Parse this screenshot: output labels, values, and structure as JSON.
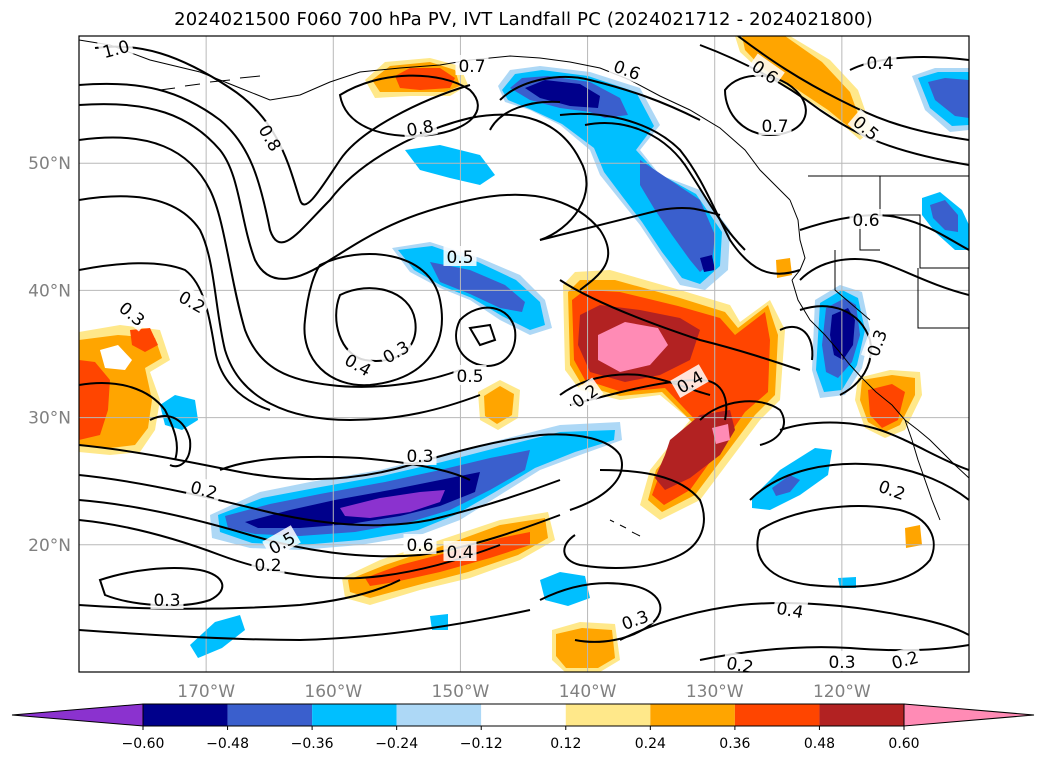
{
  "title": "2024021500 F060 700 hPa PV, IVT Landfall PC (2024021712 - 2024021800)",
  "map": {
    "lon_ticks": [
      "170°W",
      "160°W",
      "150°W",
      "140°W",
      "130°W",
      "120°W"
    ],
    "lat_ticks": [
      "50°N",
      "40°N",
      "30°N",
      "20°N"
    ],
    "lon_range": [
      -180,
      -110
    ],
    "lat_range": [
      10,
      60
    ],
    "grid": true
  },
  "colorbar": {
    "tick_labels": [
      "−0.60",
      "−0.48",
      "−0.36",
      "−0.24",
      "−0.12",
      "0.12",
      "0.24",
      "0.36",
      "0.48",
      "0.60"
    ],
    "colors": [
      "#8b32cf",
      "#00008b",
      "#3a5fcd",
      "#00bfff",
      "#add8f6",
      "#ffffff",
      "#ffe88a",
      "#ffa500",
      "#ff4500",
      "#b22222",
      "#ff8bb5"
    ],
    "extend": "both"
  },
  "contour_labels": [
    "1.0",
    "0.8",
    "0.7",
    "0.8",
    "0.6",
    "0.7",
    "0.6",
    "0.4",
    "0.5",
    "0.6",
    "0.5",
    "0.3",
    "0.2",
    "0.3",
    "0.4",
    "0.5",
    "0.2",
    "0.4",
    "0.3",
    "0.2",
    "0.3",
    "0.2",
    "0.5",
    "0.6",
    "0.4",
    "0.3",
    "0.3",
    "0.4",
    "0.2",
    "0.3",
    "0.2",
    "0.2"
  ]
}
